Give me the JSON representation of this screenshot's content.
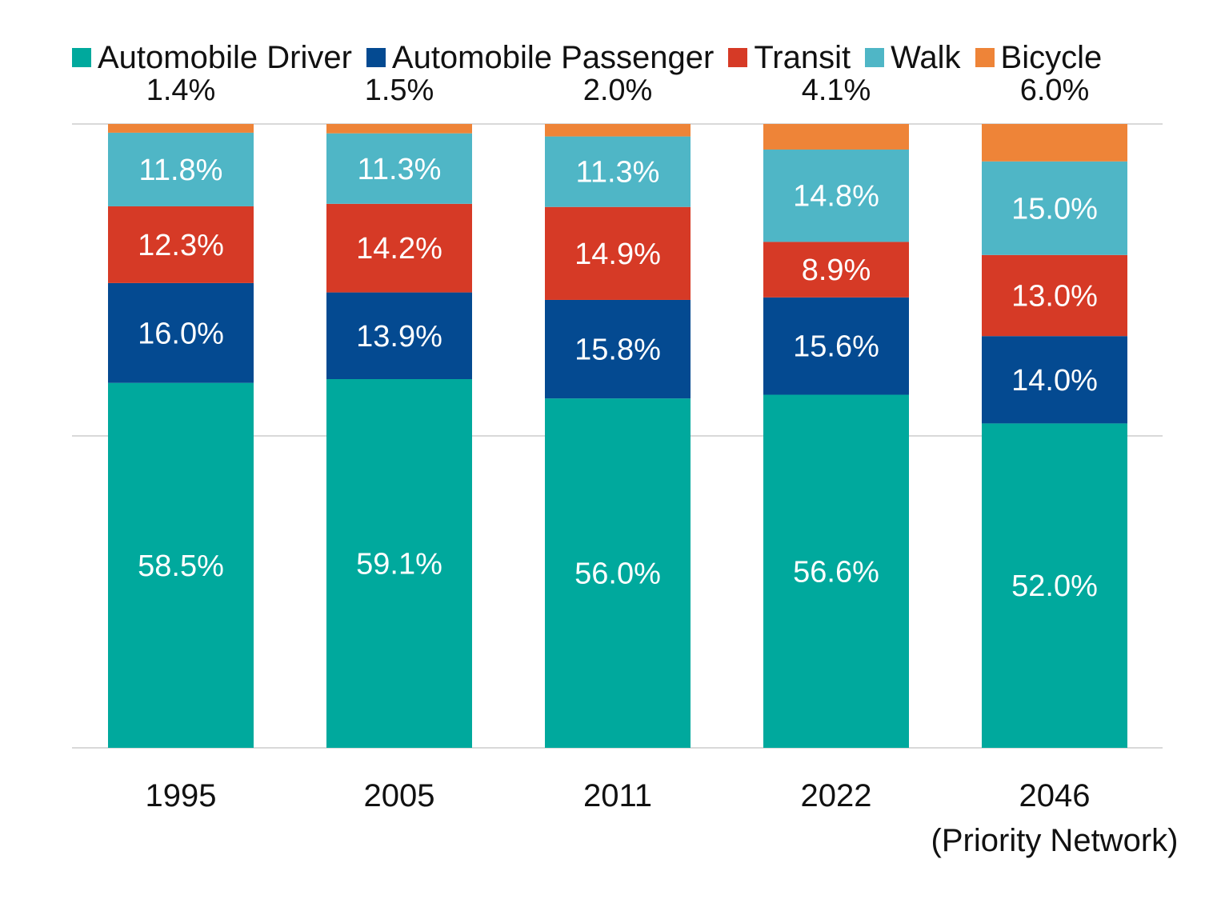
{
  "chart_data": {
    "type": "bar",
    "stacked": true,
    "grid": true,
    "legend_position": "top",
    "categories": [
      "1995",
      "2005",
      "2011",
      "2022",
      "2046"
    ],
    "category_sublabels": [
      "",
      "",
      "",
      "",
      "(Priority Network)"
    ],
    "series": [
      {
        "name": "Automobile Driver",
        "color": "#00A99D",
        "values": [
          58.5,
          59.1,
          56.0,
          56.6,
          52.0
        ],
        "labels": [
          "58.5%",
          "59.1%",
          "56.0%",
          "56.6%",
          "52.0%"
        ]
      },
      {
        "name": "Automobile Passenger",
        "color": "#044A91",
        "values": [
          16.0,
          13.9,
          15.8,
          15.6,
          14.0
        ],
        "labels": [
          "16.0%",
          "13.9%",
          "15.8%",
          "15.6%",
          "14.0%"
        ]
      },
      {
        "name": "Transit",
        "color": "#D63A26",
        "values": [
          12.3,
          14.2,
          14.9,
          8.9,
          13.0
        ],
        "labels": [
          "12.3%",
          "14.2%",
          "14.9%",
          "8.9%",
          "13.0%"
        ]
      },
      {
        "name": "Walk",
        "color": "#4FB6C6",
        "values": [
          11.8,
          11.3,
          11.3,
          14.8,
          15.0
        ],
        "labels": [
          "11.8%",
          "11.3%",
          "11.3%",
          "14.8%",
          "15.0%"
        ]
      },
      {
        "name": "Bicycle",
        "color": "#EE8438",
        "values": [
          1.4,
          1.5,
          2.0,
          4.1,
          6.0
        ],
        "labels": [
          "1.4%",
          "1.5%",
          "2.0%",
          "4.1%",
          "6.0%"
        ]
      }
    ],
    "ylim": [
      0,
      100
    ]
  }
}
